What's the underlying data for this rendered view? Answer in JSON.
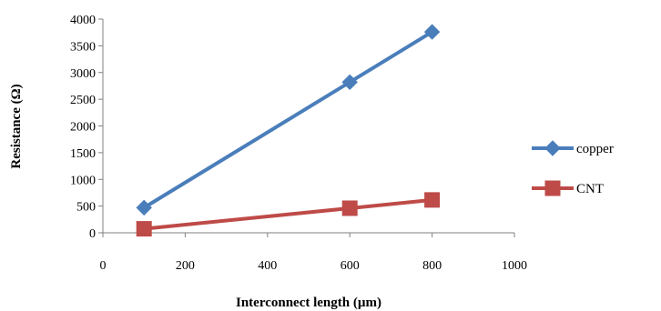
{
  "chart_data": {
    "type": "line",
    "title": "",
    "xlabel": "Interconnect length (µm)",
    "ylabel": "Resistance (Ω)",
    "xlim": [
      0,
      1000
    ],
    "ylim": [
      0,
      4000
    ],
    "x_ticks": [
      0,
      200,
      400,
      600,
      800,
      1000
    ],
    "y_ticks": [
      0,
      500,
      1000,
      1500,
      2000,
      2500,
      3000,
      3500,
      4000
    ],
    "grid": false,
    "legend_position": "right",
    "series": [
      {
        "name": "copper",
        "color": "#4a7ebb",
        "marker": "diamond",
        "x": [
          100,
          600,
          800
        ],
        "values": [
          470,
          2820,
          3760
        ]
      },
      {
        "name": "CNT",
        "color": "#be4b48",
        "marker": "square",
        "x": [
          100,
          600,
          800
        ],
        "values": [
          75,
          460,
          615
        ]
      }
    ]
  }
}
